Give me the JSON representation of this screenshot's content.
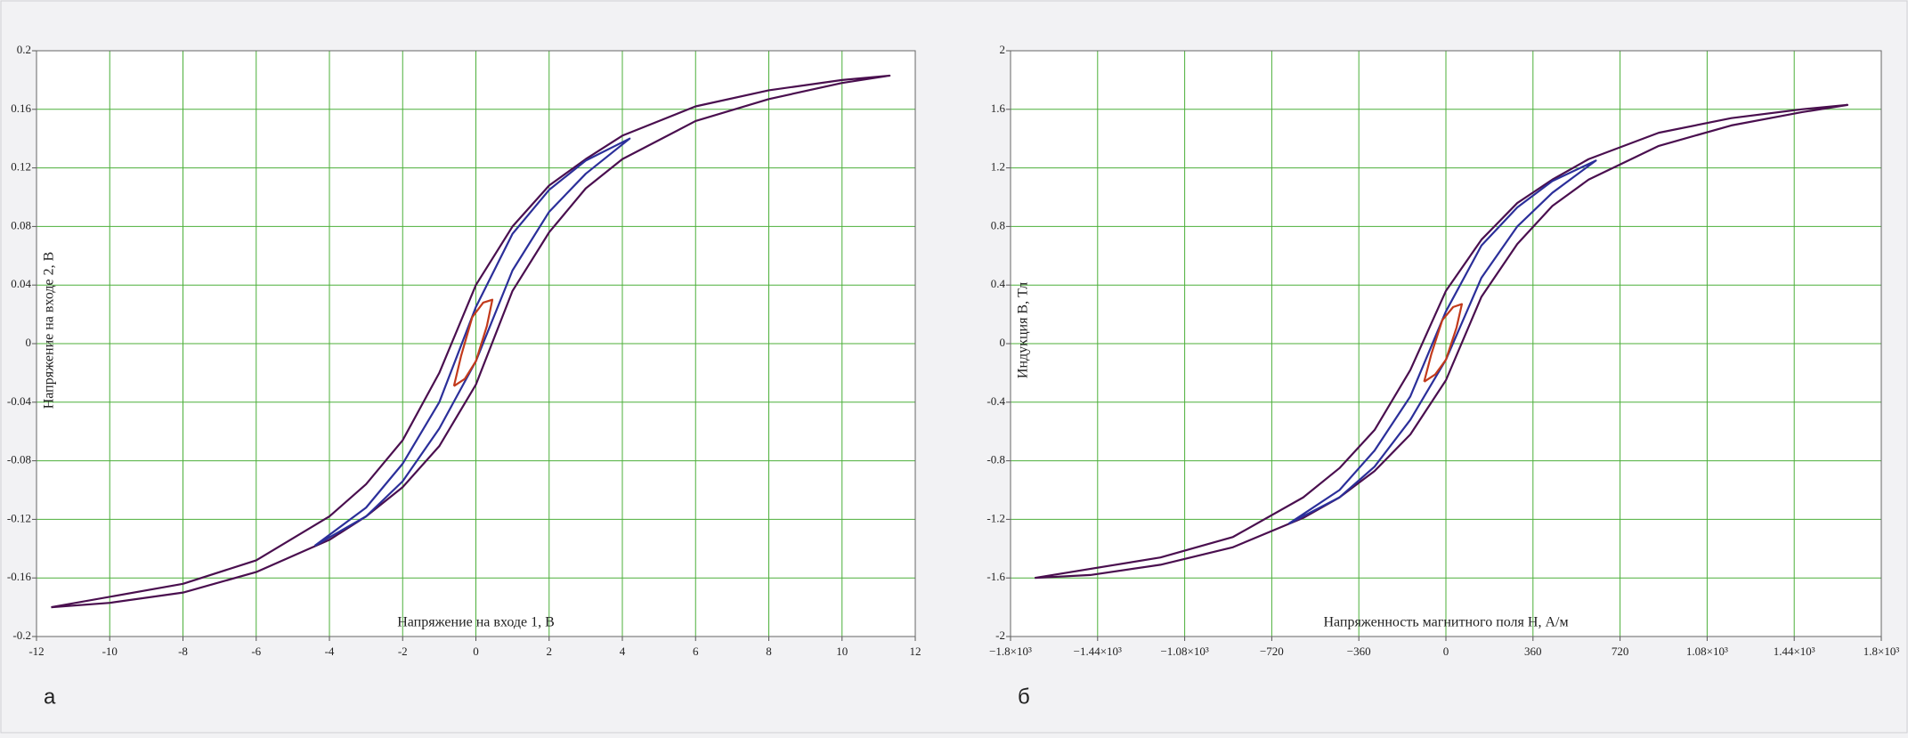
{
  "chart_data": [
    {
      "type": "line",
      "panel_label": "а",
      "x_label": "Напряжение на входе 1, В",
      "y_label": "Напряжение на входе 2, В",
      "xlim": [
        -12,
        12
      ],
      "ylim": [
        -0.2,
        0.2
      ],
      "xticks": [
        -12,
        -10,
        -8,
        -6,
        -4,
        -2,
        0,
        2,
        4,
        6,
        8,
        10,
        12
      ],
      "yticks": [
        -0.2,
        -0.16,
        -0.12,
        -0.08,
        -0.04,
        0,
        0.04,
        0.08,
        0.12,
        0.16,
        0.2
      ],
      "grid": true,
      "series": [
        {
          "color": "#4a0f4f",
          "x": [
            -11.6,
            -8,
            -6,
            -4,
            -3,
            -2,
            -1,
            0,
            1,
            2,
            3,
            4,
            6,
            8,
            10,
            11.3,
            10,
            8,
            6,
            4,
            3,
            2,
            1,
            0,
            -1,
            -2,
            -3,
            -4,
            -6,
            -8,
            -10,
            -11.6
          ],
          "y": [
            -0.18,
            -0.164,
            -0.148,
            -0.118,
            -0.096,
            -0.066,
            -0.02,
            0.04,
            0.08,
            0.108,
            0.126,
            0.142,
            0.162,
            0.173,
            0.18,
            0.183,
            0.178,
            0.167,
            0.152,
            0.126,
            0.106,
            0.076,
            0.036,
            -0.028,
            -0.07,
            -0.098,
            -0.118,
            -0.134,
            -0.156,
            -0.17,
            -0.177,
            -0.18
          ]
        },
        {
          "color": "#2b2f9a",
          "x": [
            -4.4,
            -3,
            -2,
            -1,
            0,
            1,
            2,
            3,
            4.2,
            3,
            2,
            1,
            0,
            -1,
            -2,
            -3,
            -4.4
          ],
          "y": [
            -0.138,
            -0.112,
            -0.082,
            -0.04,
            0.025,
            0.075,
            0.105,
            0.125,
            0.14,
            0.116,
            0.09,
            0.05,
            -0.012,
            -0.058,
            -0.094,
            -0.118,
            -0.138
          ]
        },
        {
          "color": "#c23a1c",
          "x": [
            -0.6,
            -0.4,
            -0.1,
            0.2,
            0.45,
            0.3,
            0,
            -0.3,
            -0.6
          ],
          "y": [
            -0.029,
            -0.008,
            0.018,
            0.028,
            0.03,
            0.012,
            -0.012,
            -0.024,
            -0.029
          ]
        }
      ]
    },
    {
      "type": "line",
      "panel_label": "б",
      "x_label": "Напряженность магнитного поля H, А/м",
      "y_label": "Индукция B, Тл",
      "xlim": [
        -1800,
        1800
      ],
      "ylim": [
        -2,
        2
      ],
      "xticks": [
        {
          "value": -1800,
          "label": "−1.8×10³"
        },
        {
          "value": -1440,
          "label": "−1.44×10³"
        },
        {
          "value": -1080,
          "label": "−1.08×10³"
        },
        {
          "value": -720,
          "label": "−720"
        },
        {
          "value": -360,
          "label": "−360"
        },
        0,
        360,
        720,
        {
          "value": 1080,
          "label": "1.08×10³"
        },
        {
          "value": 1440,
          "label": "1.44×10³"
        },
        {
          "value": 1800,
          "label": "1.8×10³"
        }
      ],
      "yticks": [
        -2,
        -1.6,
        -1.2,
        -0.8,
        -0.4,
        0,
        0.4,
        0.8,
        1.2,
        1.6,
        2
      ],
      "grid": true,
      "series": [
        {
          "color": "#4a0f4f",
          "x": [
            -1700,
            -1180,
            -880,
            -590,
            -440,
            -295,
            -147,
            0,
            147,
            295,
            440,
            590,
            880,
            1180,
            1470,
            1660,
            1470,
            1180,
            880,
            590,
            440,
            295,
            147,
            0,
            -147,
            -295,
            -440,
            -590,
            -880,
            -1180,
            -1470,
            -1700
          ],
          "y": [
            -1.6,
            -1.46,
            -1.32,
            -1.05,
            -0.85,
            -0.59,
            -0.18,
            0.36,
            0.71,
            0.96,
            1.12,
            1.26,
            1.44,
            1.54,
            1.6,
            1.63,
            1.58,
            1.49,
            1.35,
            1.12,
            0.94,
            0.68,
            0.32,
            -0.25,
            -0.62,
            -0.87,
            -1.05,
            -1.19,
            -1.39,
            -1.51,
            -1.58,
            -1.6
          ]
        },
        {
          "color": "#2b2f9a",
          "x": [
            -650,
            -440,
            -295,
            -147,
            0,
            147,
            295,
            440,
            620,
            440,
            295,
            147,
            0,
            -147,
            -295,
            -440,
            -650
          ],
          "y": [
            -1.23,
            -1.0,
            -0.73,
            -0.36,
            0.22,
            0.67,
            0.93,
            1.11,
            1.25,
            1.03,
            0.8,
            0.45,
            -0.11,
            -0.52,
            -0.84,
            -1.05,
            -1.23
          ]
        },
        {
          "color": "#c23a1c",
          "x": [
            -90,
            -60,
            -15,
            30,
            66,
            44,
            0,
            -44,
            -90
          ],
          "y": [
            -0.26,
            -0.07,
            0.16,
            0.25,
            0.27,
            0.11,
            -0.11,
            -0.21,
            -0.26
          ]
        }
      ]
    }
  ]
}
